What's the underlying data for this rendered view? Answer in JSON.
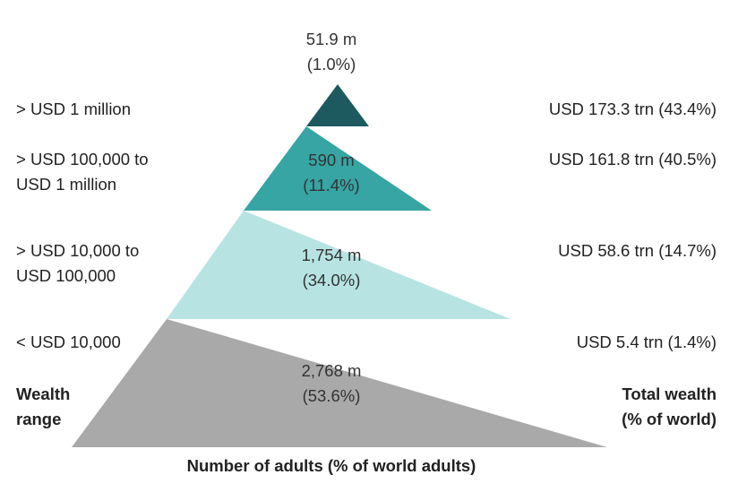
{
  "tiers": [
    {
      "wealth_range": "> USD 1 million",
      "wealth_range_line2": "",
      "adults": "51.9 m",
      "adults_pct": "(1.0%)",
      "total_wealth": "USD 173.3 trn (43.4%)",
      "color": "#1c5a5f"
    },
    {
      "wealth_range": "> USD 100,000 to",
      "wealth_range_line2": "USD 1 million",
      "adults": "590 m",
      "adults_pct": "(11.4%)",
      "total_wealth": "USD 161.8 trn (40.5%)",
      "color": "#36a5a4"
    },
    {
      "wealth_range": "> USD 10,000 to",
      "wealth_range_line2": "USD 100,000",
      "adults": "1,754 m",
      "adults_pct": "(34.0%)",
      "total_wealth": "USD 58.6 trn (14.7%)",
      "color": "#b7e3e3"
    },
    {
      "wealth_range": "< USD 10,000",
      "wealth_range_line2": "",
      "adults": "2,768 m",
      "adults_pct": "(53.6%)",
      "total_wealth": "USD 5.4 trn (1.4%)",
      "color": "#a9a9a9"
    }
  ],
  "labels": {
    "wealth_range_title_line1": "Wealth",
    "wealth_range_title_line2": "range",
    "total_wealth_title_line1": "Total wealth",
    "total_wealth_title_line2": "(% of world)",
    "bottom_axis": "Number of adults (% of world adults)"
  }
}
